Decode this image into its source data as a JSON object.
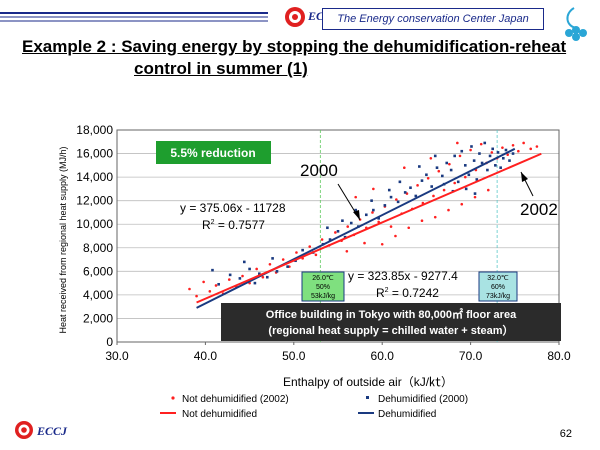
{
  "header": {
    "org_name": "The Energy conservation Center Japan",
    "brand": "ECCJ"
  },
  "title": {
    "line1": "Example 2 : Saving energy by stopping the dehumidification-reheat",
    "line2": "control in summer (1)"
  },
  "footer": {
    "brand": "ECCJ",
    "page_number": "62"
  },
  "colors": {
    "not_dehumidified": "#ff2020",
    "dehumidified": "#1a3a80",
    "reduction_box": "#1e9e2e",
    "info_box": "#2b2b2b",
    "green_note": "#7fe07f",
    "teal_note": "#a9e3e3",
    "brand_blue": "#1a2a8a"
  },
  "chart_data": {
    "type": "scatter",
    "title": "",
    "xlabel": "Enthalpy of outside air（kJ/㏏）",
    "ylabel": "Heat received from regional heat supply (MJ/h)",
    "xlim": [
      30,
      80
    ],
    "ylim": [
      0,
      18000
    ],
    "x_ticks": [
      "30.0",
      "40.0",
      "50.0",
      "60.0",
      "70.0",
      "80.0"
    ],
    "y_ticks": [
      "0",
      "2,000",
      "4,000",
      "6,000",
      "8,000",
      "10,000",
      "12,000",
      "14,000",
      "16,000",
      "18,000"
    ],
    "grid": true,
    "legend_position": "bottom",
    "legend": [
      {
        "label": "Not dehumidified (2002)",
        "kind": "marker",
        "series": "not_dehumidified"
      },
      {
        "label": "Dehumidified (2000)",
        "kind": "marker",
        "series": "dehumidified"
      },
      {
        "label": "Not dehumidified",
        "kind": "line",
        "series": "not_dehumidified"
      },
      {
        "label": "Dehumidified",
        "kind": "line",
        "series": "dehumidified"
      }
    ],
    "series": [
      {
        "key": "dehumidified",
        "year_label": "2000",
        "color": "#1a3a80",
        "fit": {
          "slope": 375.06,
          "intercept": -11728,
          "x_range": [
            39,
            75
          ]
        },
        "equation": "y = 375.06x - 11728",
        "r2_label": "R",
        "r2_value": " = 0.7577",
        "points": [
          [
            40.8,
            6100
          ],
          [
            41.5,
            4900
          ],
          [
            42.8,
            5700
          ],
          [
            43.9,
            5400
          ],
          [
            45.0,
            6200
          ],
          [
            45.6,
            5000
          ],
          [
            46.1,
            5800
          ],
          [
            47.0,
            5500
          ],
          [
            48.1,
            6000
          ],
          [
            49.3,
            6400
          ],
          [
            50.2,
            6900
          ],
          [
            51.0,
            7800
          ],
          [
            52.2,
            7600
          ],
          [
            53.3,
            8300
          ],
          [
            54.1,
            8700
          ],
          [
            55.0,
            9400
          ],
          [
            55.8,
            8900
          ],
          [
            56.5,
            10100
          ],
          [
            57.3,
            9800
          ],
          [
            58.2,
            10800
          ],
          [
            59.0,
            11200
          ],
          [
            59.6,
            10500
          ],
          [
            60.3,
            11600
          ],
          [
            61.0,
            12300
          ],
          [
            61.8,
            11900
          ],
          [
            62.6,
            12700
          ],
          [
            63.2,
            13100
          ],
          [
            63.8,
            12400
          ],
          [
            64.5,
            13700
          ],
          [
            65.0,
            14200
          ],
          [
            65.6,
            13200
          ],
          [
            66.2,
            14800
          ],
          [
            66.8,
            14100
          ],
          [
            67.3,
            15200
          ],
          [
            67.8,
            14600
          ],
          [
            68.2,
            15800
          ],
          [
            68.6,
            13600
          ],
          [
            69.0,
            16200
          ],
          [
            69.4,
            15000
          ],
          [
            69.8,
            14200
          ],
          [
            70.1,
            16600
          ],
          [
            70.4,
            15400
          ],
          [
            70.7,
            13800
          ],
          [
            71.0,
            16000
          ],
          [
            71.3,
            15200
          ],
          [
            71.6,
            16900
          ],
          [
            71.9,
            14600
          ],
          [
            72.2,
            15800
          ],
          [
            72.5,
            16400
          ],
          [
            72.8,
            15000
          ],
          [
            73.1,
            16100
          ],
          [
            73.4,
            14800
          ],
          [
            73.7,
            15600
          ],
          [
            74.0,
            16300
          ],
          [
            74.4,
            15400
          ],
          [
            74.8,
            16000
          ],
          [
            67.0,
            13400
          ],
          [
            68.0,
            12800
          ],
          [
            69.5,
            13000
          ],
          [
            70.5,
            12600
          ],
          [
            66.0,
            15800
          ],
          [
            64.2,
            14900
          ],
          [
            62.0,
            13600
          ],
          [
            60.8,
            12900
          ],
          [
            58.8,
            12000
          ],
          [
            57.0,
            11200
          ],
          [
            55.5,
            10300
          ],
          [
            53.8,
            9700
          ],
          [
            47.6,
            7100
          ],
          [
            44.4,
            6800
          ]
        ]
      },
      {
        "key": "not_dehumidified",
        "year_label": "2002",
        "color": "#ff2020",
        "fit": {
          "slope": 323.85,
          "intercept": -9277.4,
          "x_range": [
            39,
            78
          ]
        },
        "equation": "y = 323.85x - 9277.4",
        "r2_label": "R",
        "r2_value": " = 0.7242",
        "points": [
          [
            38.2,
            4500
          ],
          [
            39.0,
            3900
          ],
          [
            39.8,
            5100
          ],
          [
            40.5,
            4300
          ],
          [
            41.2,
            4800
          ],
          [
            42.0,
            4100
          ],
          [
            42.7,
            5300
          ],
          [
            43.5,
            4700
          ],
          [
            44.2,
            5600
          ],
          [
            45.0,
            5000
          ],
          [
            45.8,
            6200
          ],
          [
            46.5,
            5500
          ],
          [
            47.3,
            6600
          ],
          [
            48.0,
            5900
          ],
          [
            48.8,
            7000
          ],
          [
            49.5,
            6400
          ],
          [
            50.3,
            7600
          ],
          [
            51.0,
            7100
          ],
          [
            51.8,
            8100
          ],
          [
            52.5,
            7400
          ],
          [
            53.2,
            8700
          ],
          [
            54.0,
            8200
          ],
          [
            54.7,
            9300
          ],
          [
            55.4,
            8600
          ],
          [
            56.1,
            9800
          ],
          [
            56.8,
            9100
          ],
          [
            57.5,
            10400
          ],
          [
            58.2,
            9700
          ],
          [
            58.9,
            11000
          ],
          [
            59.6,
            10200
          ],
          [
            60.3,
            11500
          ],
          [
            61.0,
            9800
          ],
          [
            61.6,
            12100
          ],
          [
            62.2,
            10900
          ],
          [
            62.8,
            12600
          ],
          [
            63.4,
            11300
          ],
          [
            64.0,
            13300
          ],
          [
            64.6,
            11800
          ],
          [
            65.2,
            13900
          ],
          [
            65.8,
            12400
          ],
          [
            66.4,
            14500
          ],
          [
            67.0,
            12900
          ],
          [
            67.6,
            15100
          ],
          [
            68.2,
            13500
          ],
          [
            68.8,
            15800
          ],
          [
            69.4,
            14000
          ],
          [
            70.0,
            16300
          ],
          [
            70.6,
            14600
          ],
          [
            71.2,
            16800
          ],
          [
            71.8,
            15200
          ],
          [
            72.4,
            16100
          ],
          [
            73.0,
            15600
          ],
          [
            73.6,
            16500
          ],
          [
            74.2,
            15900
          ],
          [
            74.8,
            16700
          ],
          [
            75.4,
            16200
          ],
          [
            76.0,
            16900
          ],
          [
            76.8,
            16400
          ],
          [
            77.5,
            16600
          ],
          [
            60.0,
            8300
          ],
          [
            61.5,
            9000
          ],
          [
            63.0,
            9700
          ],
          [
            64.5,
            10300
          ],
          [
            66.0,
            10600
          ],
          [
            67.5,
            11200
          ],
          [
            69.0,
            11700
          ],
          [
            70.5,
            12300
          ],
          [
            72.0,
            12900
          ],
          [
            56.0,
            7700
          ],
          [
            58.0,
            8400
          ],
          [
            62.5,
            14800
          ],
          [
            65.5,
            15600
          ],
          [
            68.5,
            16900
          ],
          [
            59.0,
            13000
          ],
          [
            57.0,
            12300
          ]
        ]
      }
    ],
    "annotations": {
      "reduction_label": "5.5% reduction",
      "green_note": [
        "26.0℃",
        "50%",
        "53kJ/kg"
      ],
      "teal_note": [
        "32.0℃",
        "60%",
        "73kJ/kg"
      ],
      "info_line1": "Office building in Tokyo with 80,000㎡ floor area",
      "info_line2": "(regional heat supply = chilled water + steam）"
    }
  }
}
